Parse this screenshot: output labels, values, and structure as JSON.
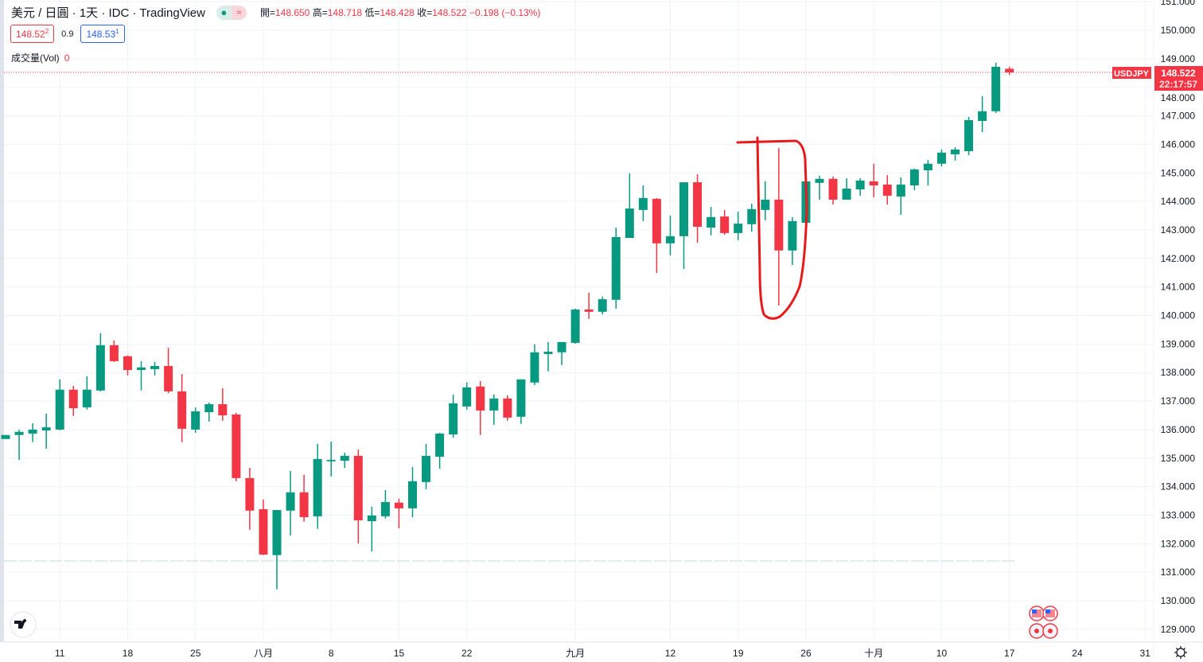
{
  "header": {
    "title": "美元 / 日圓 · 1天 · IDC · TradingView",
    "ohlc": [
      {
        "k": "開=",
        "v": "148.650"
      },
      {
        "k": "高=",
        "v": "148.718"
      },
      {
        "k": "低=",
        "v": "148.428"
      },
      {
        "k": "收=",
        "v": "148.522"
      }
    ],
    "change": "−0.198 (−0.13%)",
    "bid_main": "148.52",
    "bid_sup": "2",
    "spread": "0.9",
    "ask_main": "148.53",
    "ask_sup": "1",
    "volume_label": "成交量(Vol)",
    "volume_value": "0",
    "status_icons": [
      "market-open-dot-icon",
      "delayed-data-icon"
    ]
  },
  "price_tag": {
    "symbol": "USDJPY",
    "price": "148.522",
    "countdown": "22:17:57"
  },
  "colors": {
    "up": "#089981",
    "down": "#f23645",
    "grid": "#f0f3fa",
    "annotation": "#e8191b",
    "ask": "#2962ff"
  },
  "chart_data": {
    "type": "candlestick",
    "symbol": "USDJPY",
    "interval": "1天",
    "ylim": [
      128.55,
      151.06
    ],
    "y_ticks": [
      "129.000",
      "130.000",
      "131.000",
      "132.000",
      "133.000",
      "134.000",
      "135.000",
      "136.000",
      "137.000",
      "138.000",
      "139.000",
      "140.000",
      "141.000",
      "142.000",
      "143.000",
      "144.000",
      "145.000",
      "146.000",
      "147.000",
      "148.000",
      "149.000",
      "150.000",
      "151.000"
    ],
    "x_ticks": [
      {
        "label": "11",
        "date": "07-11"
      },
      {
        "label": "18",
        "date": "07-18"
      },
      {
        "label": "25",
        "date": "07-25"
      },
      {
        "label": "八月",
        "date": "08-01"
      },
      {
        "label": "8",
        "date": "08-08"
      },
      {
        "label": "15",
        "date": "08-15"
      },
      {
        "label": "22",
        "date": "08-22"
      },
      {
        "label": "九月",
        "date": "09-01"
      },
      {
        "label": "12",
        "date": "09-12"
      },
      {
        "label": "19",
        "date": "09-19"
      },
      {
        "label": "26",
        "date": "09-26"
      },
      {
        "label": "十月",
        "date": "10-03"
      },
      {
        "label": "10",
        "date": "10-10"
      },
      {
        "label": "17",
        "date": "10-17"
      },
      {
        "label": "24",
        "date": "10-24"
      },
      {
        "label": "31",
        "date": "10-31"
      }
    ],
    "grid": true,
    "last_price": 148.522,
    "candles_fields": [
      "date",
      "open",
      "high",
      "low",
      "close"
    ],
    "candles": [
      [
        "07-05",
        135.67,
        135.81,
        135.67,
        135.81
      ],
      [
        "07-06",
        135.81,
        136.0,
        134.94,
        135.92
      ],
      [
        "07-07",
        135.86,
        136.22,
        135.56,
        136.0
      ],
      [
        "07-08",
        135.97,
        136.56,
        135.33,
        136.08
      ],
      [
        "07-11",
        136.0,
        137.76,
        135.98,
        137.4
      ],
      [
        "07-12",
        137.4,
        137.53,
        136.48,
        136.75
      ],
      [
        "07-13",
        136.78,
        137.87,
        136.7,
        137.4
      ],
      [
        "07-14",
        137.37,
        139.38,
        137.34,
        138.96
      ],
      [
        "07-15",
        138.96,
        139.12,
        138.37,
        138.4
      ],
      [
        "07-18",
        138.57,
        138.6,
        137.9,
        138.09
      ],
      [
        "07-19",
        138.09,
        138.4,
        137.37,
        138.18
      ],
      [
        "07-20",
        138.12,
        138.37,
        137.9,
        138.23
      ],
      [
        "07-21",
        138.23,
        138.87,
        137.28,
        137.34
      ],
      [
        "07-22",
        137.34,
        137.95,
        135.56,
        136.03
      ],
      [
        "07-25",
        136.0,
        136.78,
        135.89,
        136.64
      ],
      [
        "07-26",
        136.61,
        136.95,
        136.28,
        136.89
      ],
      [
        "07-27",
        136.89,
        137.45,
        136.31,
        136.5
      ],
      [
        "07-28",
        136.53,
        136.59,
        134.19,
        134.3
      ],
      [
        "07-29",
        134.3,
        134.66,
        132.49,
        133.16
      ],
      [
        "08-01",
        133.21,
        133.55,
        131.6,
        131.62
      ],
      [
        "08-02",
        131.6,
        133.18,
        130.4,
        133.18
      ],
      [
        "08-03",
        133.16,
        134.55,
        132.29,
        133.8
      ],
      [
        "08-04",
        133.8,
        134.41,
        132.77,
        132.93
      ],
      [
        "08-05",
        132.96,
        135.5,
        132.52,
        134.97
      ],
      [
        "08-08",
        134.89,
        135.58,
        134.36,
        134.94
      ],
      [
        "08-09",
        134.91,
        135.19,
        134.66,
        135.08
      ],
      [
        "08-10",
        135.08,
        135.3,
        132.01,
        132.82
      ],
      [
        "08-11",
        132.79,
        133.3,
        131.73,
        132.99
      ],
      [
        "08-12",
        132.96,
        133.88,
        132.88,
        133.46
      ],
      [
        "08-15",
        133.44,
        133.58,
        132.54,
        133.24
      ],
      [
        "08-16",
        133.24,
        134.69,
        132.93,
        134.19
      ],
      [
        "08-17",
        134.16,
        135.5,
        133.91,
        135.08
      ],
      [
        "08-18",
        135.05,
        135.89,
        134.63,
        135.86
      ],
      [
        "08-19",
        135.83,
        137.23,
        135.72,
        136.92
      ],
      [
        "08-22",
        136.81,
        137.65,
        136.7,
        137.48
      ],
      [
        "08-23",
        137.51,
        137.7,
        135.81,
        136.67
      ],
      [
        "08-24",
        136.67,
        137.23,
        136.17,
        137.09
      ],
      [
        "08-25",
        137.09,
        137.2,
        136.31,
        136.42
      ],
      [
        "08-26",
        136.45,
        137.76,
        136.2,
        137.76
      ],
      [
        "08-29",
        137.65,
        138.99,
        137.56,
        138.71
      ],
      [
        "08-30",
        138.65,
        139.07,
        138.04,
        138.73
      ],
      [
        "08-31",
        138.71,
        139.07,
        138.26,
        139.07
      ],
      [
        "09-01",
        139.04,
        140.24,
        139.01,
        140.21
      ],
      [
        "09-02",
        140.21,
        140.8,
        139.88,
        140.13
      ],
      [
        "09-05",
        140.13,
        140.66,
        140.04,
        140.57
      ],
      [
        "09-06",
        140.55,
        143.08,
        140.24,
        142.75
      ],
      [
        "09-07",
        142.72,
        144.98,
        142.72,
        143.75
      ],
      [
        "09-08",
        143.7,
        144.56,
        143.31,
        144.12
      ],
      [
        "09-09",
        144.09,
        144.12,
        141.49,
        142.53
      ],
      [
        "09-12",
        142.53,
        143.5,
        142.11,
        142.78
      ],
      [
        "09-13",
        142.78,
        144.67,
        141.63,
        144.67
      ],
      [
        "09-14",
        144.67,
        144.95,
        142.55,
        143.11
      ],
      [
        "09-15",
        143.08,
        143.81,
        142.81,
        143.45
      ],
      [
        "09-16",
        143.47,
        143.7,
        142.83,
        142.89
      ],
      [
        "09-19",
        142.89,
        143.64,
        142.64,
        143.22
      ],
      [
        "09-20",
        143.2,
        143.92,
        142.94,
        143.73
      ],
      [
        "09-21",
        143.7,
        144.7,
        143.34,
        144.06
      ],
      [
        "09-22",
        144.06,
        145.87,
        140.35,
        142.28
      ],
      [
        "09-23",
        142.28,
        143.45,
        141.77,
        143.31
      ],
      [
        "09-26",
        143.25,
        144.78,
        143.25,
        144.7
      ],
      [
        "09-27",
        144.65,
        144.9,
        144.06,
        144.79
      ],
      [
        "09-28",
        144.79,
        144.87,
        143.89,
        144.06
      ],
      [
        "09-29",
        144.06,
        144.81,
        144.06,
        144.45
      ],
      [
        "09-30",
        144.42,
        144.81,
        144.2,
        144.73
      ],
      [
        "10-03",
        144.7,
        145.32,
        144.14,
        144.56
      ],
      [
        "10-04",
        144.59,
        144.92,
        143.89,
        144.2
      ],
      [
        "10-05",
        144.17,
        144.84,
        143.53,
        144.59
      ],
      [
        "10-06",
        144.56,
        145.15,
        144.39,
        145.12
      ],
      [
        "10-07",
        145.09,
        145.45,
        144.56,
        145.32
      ],
      [
        "10-10",
        145.32,
        145.82,
        145.23,
        145.71
      ],
      [
        "10-11",
        145.65,
        145.9,
        145.43,
        145.82
      ],
      [
        "10-12",
        145.76,
        146.96,
        145.62,
        146.85
      ],
      [
        "10-13",
        146.82,
        147.69,
        146.43,
        147.16
      ],
      [
        "10-14",
        147.16,
        148.86,
        147.1,
        148.72
      ],
      [
        "10-17",
        148.65,
        148.718,
        148.428,
        148.522
      ]
    ]
  }
}
